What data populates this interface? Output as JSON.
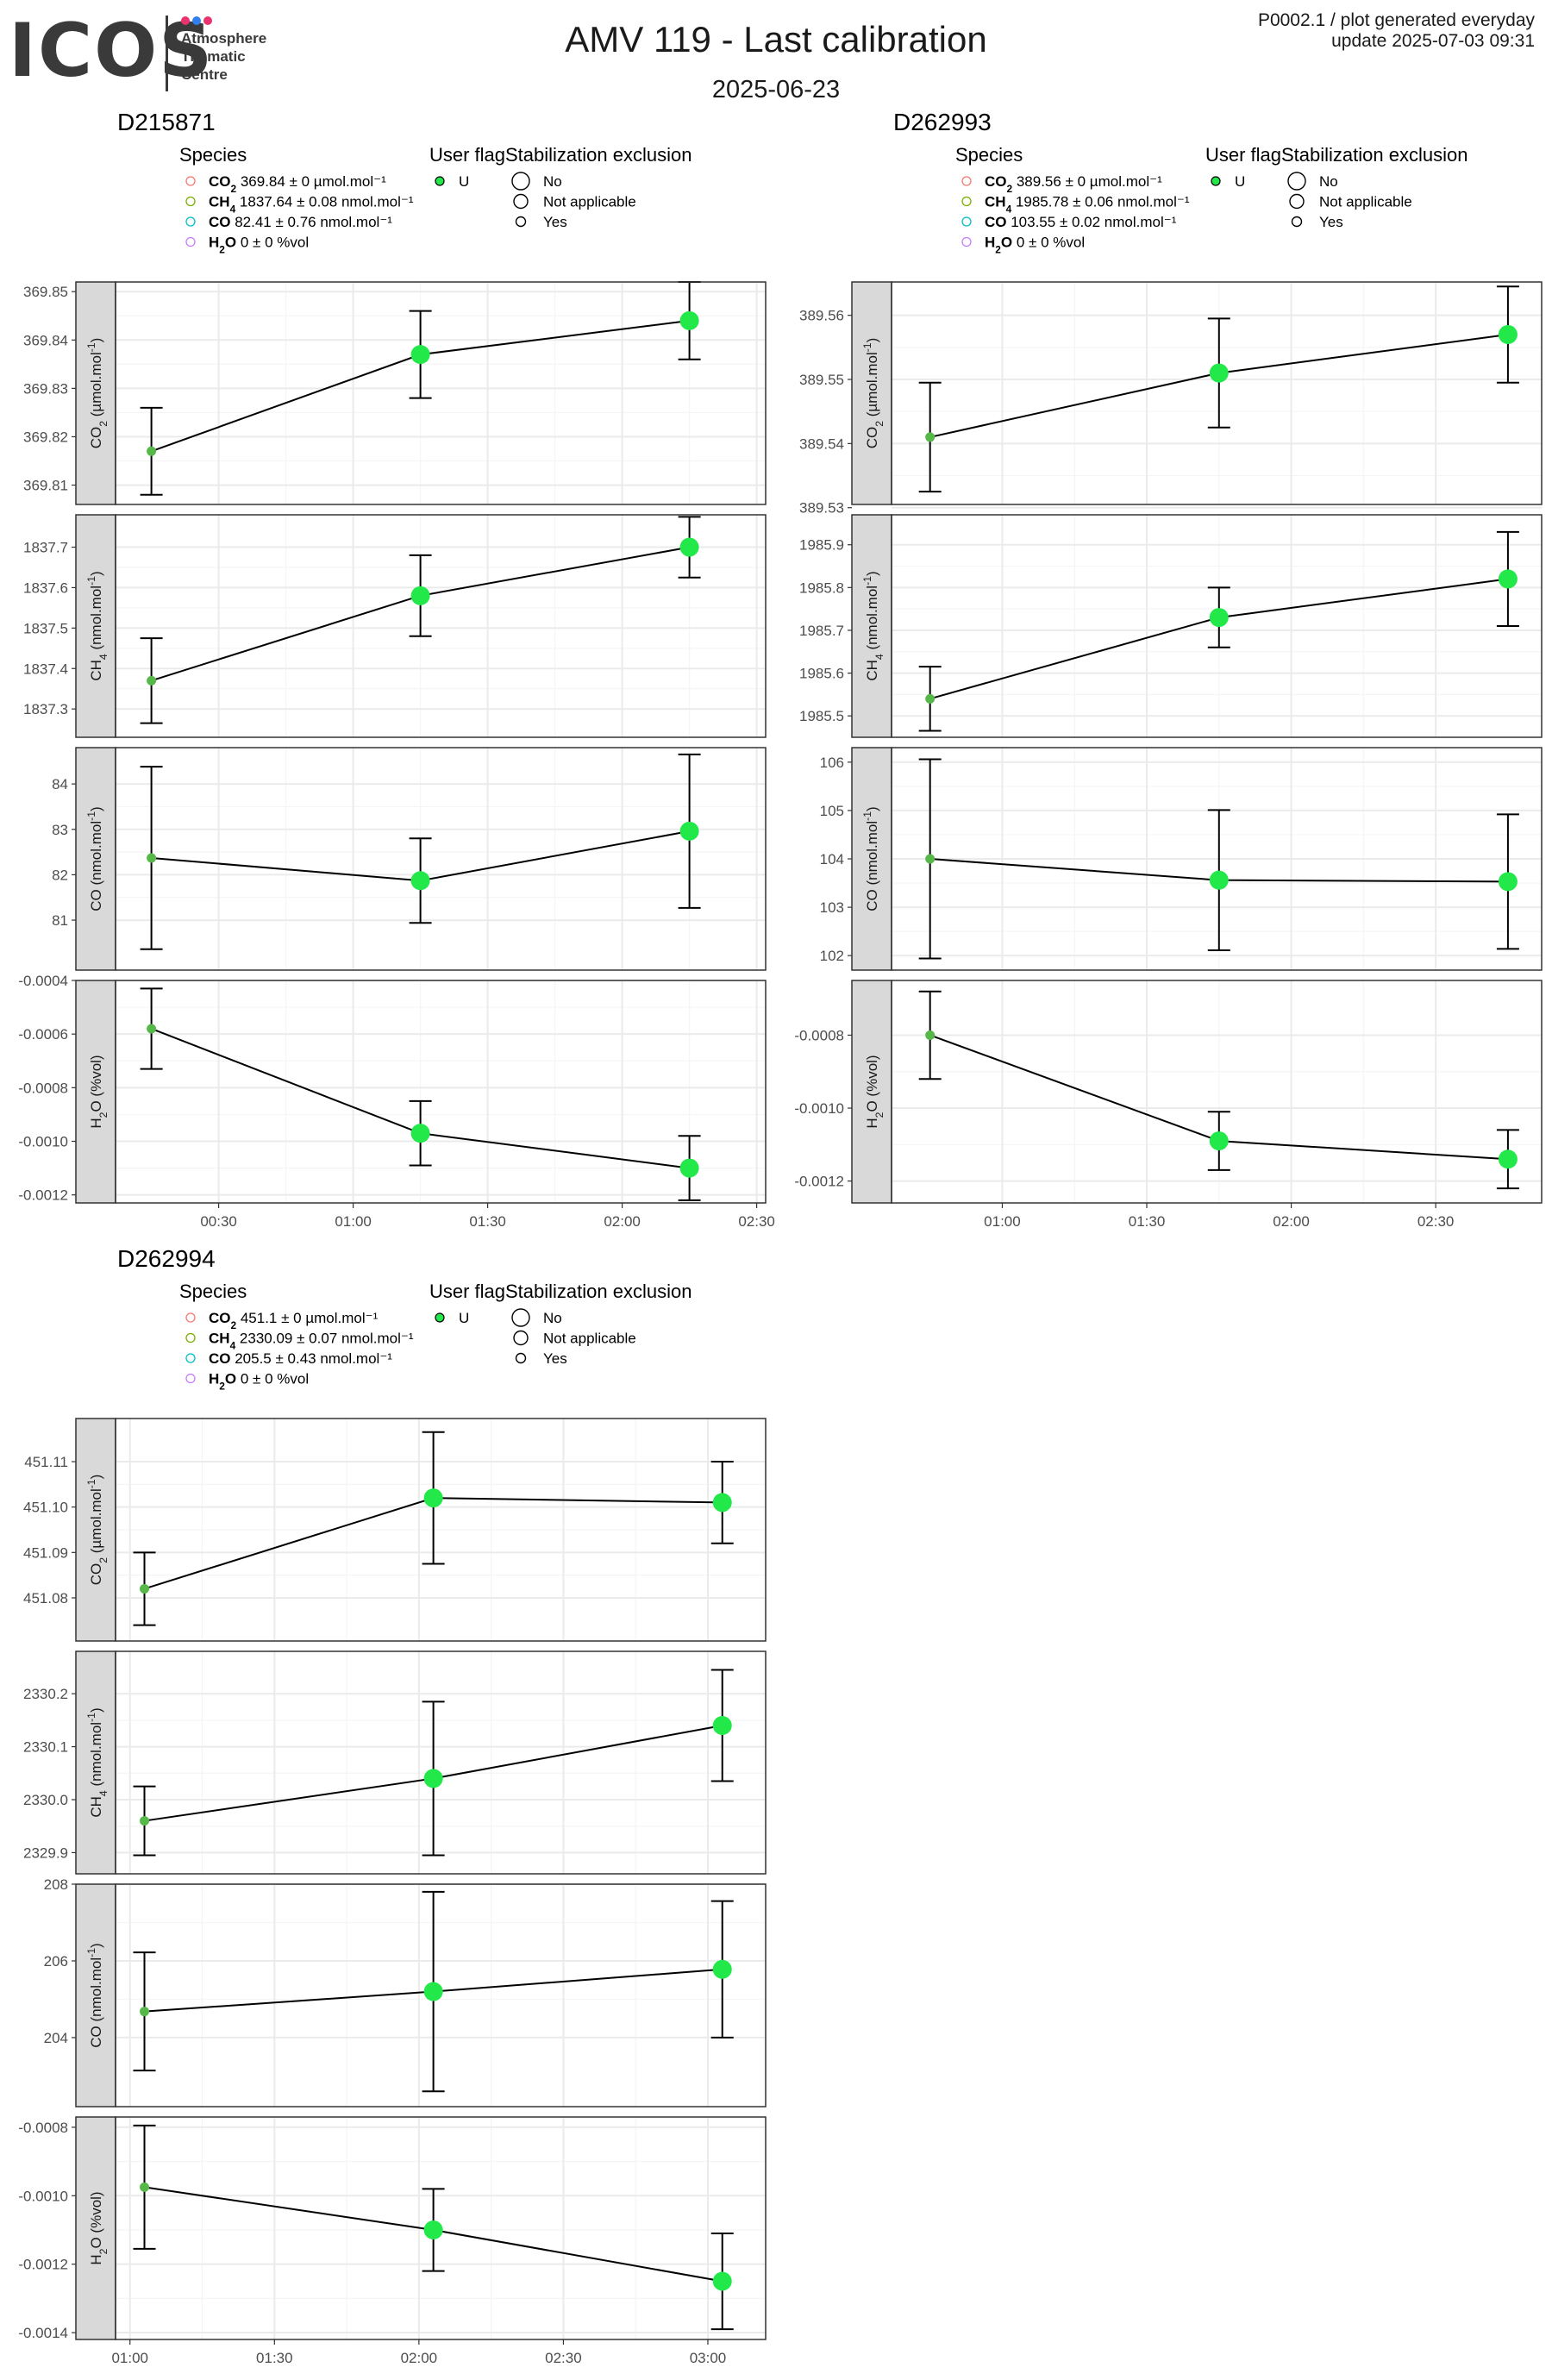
{
  "header": {
    "logo_word": "ICOS",
    "logo_lines": [
      "Atmosphere",
      "Thematic",
      "Centre"
    ],
    "logo_dot_colors": [
      "#e8336d",
      "#2f80ed",
      "#e8336d"
    ],
    "title": "AMV 119 - Last calibration",
    "subtitle": "2025-06-23",
    "note_line1": "P0002.1 / plot generated everyday",
    "note_line2": "update  2025-07-03 09:31"
  },
  "legend_titles": {
    "species": "Species",
    "user_flag": "User flag",
    "stabilization": "Stabilization exclusion"
  },
  "colors": {
    "point_fill": "#22e84a",
    "point_fill_small": "#57b84a",
    "line": "#000000",
    "strip_bg": "#d9d9d9",
    "grid_major": "#ebebeb",
    "grid_minor": "#f5f5f5",
    "species_co2": "#f8766d",
    "species_ch4": "#7cae00",
    "species_co": "#00bfc4",
    "species_h2o": "#c77cff"
  },
  "chart_data": [
    {
      "type": "line",
      "title": "D215871",
      "legend": {
        "species": [
          {
            "name": "CO2",
            "text": "369.84 ± 0 µmol.mol⁻¹"
          },
          {
            "name": "CH4",
            "text": "1837.64 ± 0.08 nmol.mol⁻¹"
          },
          {
            "name": "CO",
            "text": "82.41 ± 0.76 nmol.mol⁻¹"
          },
          {
            "name": "H2O",
            "text": "0 ± 0 %vol"
          }
        ],
        "user_flag": [
          "U"
        ],
        "stabilization": [
          "No",
          "Not applicable",
          "Yes"
        ]
      },
      "x_ticks": [
        "00:30",
        "01:00",
        "01:30",
        "02:00",
        "02:30"
      ],
      "x_tick_minutes": [
        30,
        60,
        90,
        120,
        150
      ],
      "xlim_minutes": [
        7,
        152
      ],
      "x_minutes": [
        15,
        75,
        135
      ],
      "panels": [
        {
          "label": "CO2 (µmol.mol-1)",
          "y": [
            369.817,
            369.837,
            369.844
          ],
          "err": [
            0.009,
            0.009,
            0.008
          ],
          "ylim": [
            369.806,
            369.852
          ],
          "ticks": [
            369.81,
            369.82,
            369.83,
            369.84,
            369.85
          ],
          "tick_labels": [
            "369.81",
            "369.82",
            "369.83",
            "369.84",
            "369.85"
          ]
        },
        {
          "label": "CH4 (nmol.mol-1)",
          "y": [
            1837.37,
            1837.58,
            1837.7
          ],
          "err": [
            0.105,
            0.1,
            0.075
          ],
          "ylim": [
            1837.23,
            1837.78
          ],
          "ticks": [
            1837.3,
            1837.4,
            1837.5,
            1837.6,
            1837.7
          ],
          "tick_labels": [
            "1837.3",
            "1837.4",
            "1837.5",
            "1837.6",
            "1837.7"
          ]
        },
        {
          "label": "CO (nmol.mol-1)",
          "y": [
            82.37,
            81.87,
            82.96
          ],
          "err": [
            2.01,
            0.93,
            1.69
          ],
          "ylim": [
            79.9,
            84.8
          ],
          "ticks": [
            81,
            82,
            83,
            84
          ],
          "tick_labels": [
            "81",
            "82",
            "83",
            "84"
          ]
        },
        {
          "label": "H2O (%vol)",
          "y": [
            -0.00058,
            -0.00097,
            -0.0011
          ],
          "err": [
            0.00015,
            0.00012,
            0.00012
          ],
          "ylim": [
            -0.00123,
            -0.0004
          ],
          "ticks": [
            -0.0012,
            -0.001,
            -0.0008,
            -0.0006,
            -0.0004
          ],
          "tick_labels": [
            "-0.0012",
            "-0.0010",
            "-0.0008",
            "-0.0006",
            "-0.0004"
          ]
        }
      ]
    },
    {
      "type": "line",
      "title": "D262993",
      "legend": {
        "species": [
          {
            "name": "CO2",
            "text": "389.56 ± 0 µmol.mol⁻¹"
          },
          {
            "name": "CH4",
            "text": "1985.78 ± 0.06 nmol.mol⁻¹"
          },
          {
            "name": "CO",
            "text": "103.55 ± 0.02 nmol.mol⁻¹"
          },
          {
            "name": "H2O",
            "text": "0 ± 0 %vol"
          }
        ],
        "user_flag": [
          "U"
        ],
        "stabilization": [
          "No",
          "Not applicable",
          "Yes"
        ]
      },
      "x_ticks": [
        "01:00",
        "01:30",
        "02:00",
        "02:30"
      ],
      "x_tick_minutes": [
        60,
        90,
        120,
        150
      ],
      "xlim_minutes": [
        37,
        172
      ],
      "x_minutes": [
        45,
        105,
        165
      ],
      "panels": [
        {
          "label": "CO2 (µmol.mol-1)",
          "y": [
            389.541,
            389.551,
            389.557
          ],
          "err": [
            0.0085,
            0.0085,
            0.0075
          ],
          "ylim": [
            389.5305,
            389.5652
          ],
          "ticks": [
            389.53,
            389.54,
            389.55,
            389.56
          ],
          "tick_labels": [
            "389.53",
            "389.54",
            "389.55",
            "389.56"
          ]
        },
        {
          "label": "CH4 (nmol.mol-1)",
          "y": [
            1985.54,
            1985.73,
            1985.82
          ],
          "err": [
            0.075,
            0.07,
            0.11
          ],
          "ylim": [
            1985.45,
            1985.97
          ],
          "ticks": [
            1985.5,
            1985.6,
            1985.7,
            1985.8,
            1985.9
          ],
          "tick_labels": [
            "1985.5",
            "1985.6",
            "1985.7",
            "1985.8",
            "1985.9"
          ]
        },
        {
          "label": "CO (nmol.mol-1)",
          "y": [
            104.0,
            103.56,
            103.53
          ],
          "err": [
            2.06,
            1.45,
            1.39
          ],
          "ylim": [
            101.7,
            106.3
          ],
          "ticks": [
            102,
            103,
            104,
            105,
            106
          ],
          "tick_labels": [
            "102",
            "103",
            "104",
            "105",
            "106"
          ]
        },
        {
          "label": "H2O (%vol)",
          "y": [
            -0.0008,
            -0.00109,
            -0.00114
          ],
          "err": [
            0.00012,
            8e-05,
            8e-05
          ],
          "ylim": [
            -0.00126,
            -0.00065
          ],
          "ticks": [
            -0.0012,
            -0.001,
            -0.0008
          ],
          "tick_labels": [
            "-0.0012",
            "-0.0010",
            "-0.0008"
          ]
        }
      ]
    },
    {
      "type": "line",
      "title": "D262994",
      "legend": {
        "species": [
          {
            "name": "CO2",
            "text": "451.1 ± 0 µmol.mol⁻¹"
          },
          {
            "name": "CH4",
            "text": "2330.09 ± 0.07 nmol.mol⁻¹"
          },
          {
            "name": "CO",
            "text": "205.5 ± 0.43 nmol.mol⁻¹"
          },
          {
            "name": "H2O",
            "text": "0 ± 0 %vol"
          }
        ],
        "user_flag": [
          "U"
        ],
        "stabilization": [
          "No",
          "Not applicable",
          "Yes"
        ]
      },
      "x_ticks": [
        "01:00",
        "01:30",
        "02:00",
        "02:30",
        "03:00"
      ],
      "x_tick_minutes": [
        60,
        90,
        120,
        150,
        180
      ],
      "xlim_minutes": [
        57,
        192
      ],
      "x_minutes": [
        63,
        123,
        183
      ],
      "panels": [
        {
          "label": "CO2 (µmol.mol-1)",
          "y": [
            451.082,
            451.102,
            451.101
          ],
          "err": [
            0.008,
            0.0145,
            0.009
          ],
          "ylim": [
            451.0705,
            451.1195
          ],
          "ticks": [
            451.08,
            451.09,
            451.1,
            451.11
          ],
          "tick_labels": [
            "451.08",
            "451.09",
            "451.10",
            "451.11"
          ]
        },
        {
          "label": "CH4 (nmol.mol-1)",
          "y": [
            2329.96,
            2330.04,
            2330.14
          ],
          "err": [
            0.065,
            0.145,
            0.105
          ],
          "ylim": [
            2329.86,
            2330.28
          ],
          "ticks": [
            2329.9,
            2330.0,
            2330.1,
            2330.2
          ],
          "tick_labels": [
            "2329.9",
            "2330.0",
            "2330.1",
            "2330.2"
          ]
        },
        {
          "label": "CO (nmol.mol-1)",
          "y": [
            204.68,
            205.2,
            205.78
          ],
          "err": [
            1.54,
            2.6,
            1.78
          ],
          "ylim": [
            202.2,
            208.0
          ],
          "ticks": [
            204,
            206,
            208
          ],
          "tick_labels": [
            "204",
            "206",
            "208"
          ]
        },
        {
          "label": "H2O (%vol)",
          "y": [
            -0.000975,
            -0.0011,
            -0.00125
          ],
          "err": [
            0.00018,
            0.00012,
            0.00014
          ],
          "ylim": [
            -0.00142,
            -0.00077
          ],
          "ticks": [
            -0.0014,
            -0.0012,
            -0.001,
            -0.0008
          ],
          "tick_labels": [
            "-0.0014",
            "-0.0012",
            "-0.0010",
            "-0.0008"
          ]
        }
      ]
    }
  ]
}
